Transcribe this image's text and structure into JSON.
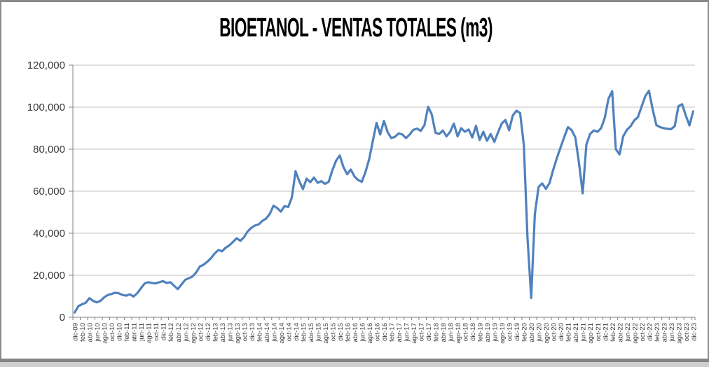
{
  "frame": {
    "background": "#ffffff",
    "border_color": "#8a8a8a"
  },
  "chart_data": {
    "type": "line",
    "title": "BIOETANOL - VENTAS TOTALES (m3)",
    "x_start": "dic-09",
    "x_end": "dic-23",
    "x_frequency": "monthly",
    "x_label_interval": 2,
    "x_labels_shown": [
      "dic-09",
      "feb-10",
      "abr-10",
      "jun-10",
      "ago-10",
      "oct-10",
      "dic-10",
      "feb-11",
      "abr-11",
      "jun-11",
      "ago-11",
      "oct-11",
      "dic-11",
      "feb-12",
      "abr-12",
      "jun-12",
      "ago-12",
      "oct-12",
      "dic-12",
      "feb-13",
      "abr-13",
      "jun-13",
      "ago-13",
      "oct-13",
      "dic-13",
      "feb-14",
      "abr-14",
      "jun-14",
      "ago-14",
      "oct-14",
      "dic-14",
      "feb-15",
      "abr-15",
      "jun-15",
      "ago-15",
      "oct-15",
      "dic-15",
      "feb-16",
      "abr-16",
      "jun-16",
      "ago-16",
      "oct-16",
      "dic-16",
      "feb-17",
      "abr-17",
      "jun-17",
      "ago-17",
      "oct-17",
      "dic-17",
      "feb-18",
      "abr-18",
      "jun-18",
      "ago-18",
      "oct-18",
      "dic-18",
      "feb-19",
      "abr-19",
      "jun-19",
      "ago-19",
      "oct-19",
      "dic-19",
      "feb-20",
      "abr-20",
      "jun-20",
      "ago-20",
      "oct-20",
      "dic-20",
      "feb-21",
      "abr-21",
      "jun-21",
      "ago-21",
      "oct-21",
      "dic-21",
      "feb-22",
      "abr-22",
      "jun-22",
      "ago-22",
      "oct-22",
      "dic-22",
      "feb-23",
      "abr-23",
      "jun-23",
      "ago-23",
      "oct-23",
      "dic-23"
    ],
    "values": [
      2300,
      5300,
      6200,
      6900,
      9100,
      7800,
      7100,
      7800,
      9500,
      10600,
      11100,
      11700,
      11400,
      10600,
      10300,
      10900,
      9900,
      11500,
      13800,
      16100,
      16700,
      16300,
      16100,
      16700,
      17200,
      16300,
      16700,
      15000,
      13400,
      15600,
      17800,
      18600,
      19400,
      21300,
      24200,
      25000,
      26400,
      28100,
      30300,
      32000,
      31400,
      33100,
      34200,
      35900,
      37600,
      36400,
      38100,
      40900,
      42600,
      43700,
      44200,
      45900,
      47000,
      49200,
      53100,
      52000,
      50300,
      52900,
      52500,
      57000,
      69500,
      64800,
      61000,
      66000,
      64300,
      66500,
      64000,
      64800,
      63500,
      64500,
      70000,
      74500,
      77000,
      71500,
      68100,
      70300,
      67000,
      65300,
      64500,
      69200,
      75300,
      84000,
      92500,
      87000,
      93500,
      88100,
      85300,
      85900,
      87500,
      87000,
      85300,
      87000,
      89200,
      89800,
      88700,
      91400,
      100200,
      96500,
      87800,
      87200,
      88900,
      86100,
      88300,
      92200,
      86100,
      90000,
      88300,
      89400,
      85600,
      91100,
      84400,
      88300,
      84000,
      87200,
      83500,
      88000,
      92200,
      93900,
      89000,
      96000,
      98300,
      97200,
      82000,
      38000,
      9200,
      49000,
      62000,
      63700,
      61100,
      63900,
      70300,
      75900,
      80900,
      85900,
      90500,
      89000,
      85600,
      73300,
      59000,
      82200,
      87200,
      88900,
      88300,
      90000,
      95000,
      104000,
      107600,
      80000,
      77500,
      86100,
      89200,
      90900,
      93700,
      95300,
      100300,
      105300,
      107800,
      99000,
      91500,
      90500,
      90000,
      89700,
      89500,
      91000,
      100500,
      101400,
      96000,
      91300,
      98000
    ],
    "ylim": [
      0,
      120000
    ],
    "y_tick_step": 20000,
    "y_tick_labels": [
      "0",
      "20,000",
      "40,000",
      "60,000",
      "80,000",
      "100,000",
      "120,000"
    ],
    "grid": true,
    "legend": "none",
    "line_color": "#4F81BD",
    "gridline_color": "#C3C3C3",
    "axis_color": "#808080",
    "tick_label_color": "#3a3a3a"
  }
}
